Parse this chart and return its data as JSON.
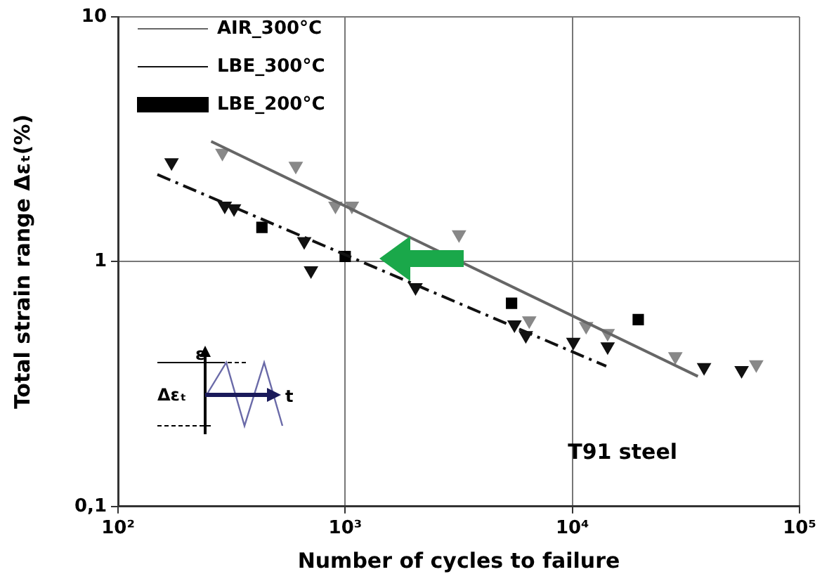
{
  "chart_data": {
    "type": "scatter",
    "xlabel": "Number of cycles to failure",
    "ylabel": "Total strain range Δεₜ(%)",
    "log": "xy",
    "xlim": [
      100,
      100000
    ],
    "ylim": [
      0.1,
      10
    ],
    "xticks": [
      {
        "value": 100,
        "label": "10²"
      },
      {
        "value": 1000,
        "label": "10³"
      },
      {
        "value": 10000,
        "label": "10⁴"
      },
      {
        "value": 100000,
        "label": "10⁵"
      }
    ],
    "yticks": [
      {
        "value": 0.1,
        "label": "0,1"
      },
      1,
      10
    ],
    "grid": true,
    "legend": "top left",
    "annotations": [
      "T91 steel",
      "ε",
      "Δεₜ",
      "t"
    ],
    "series": [
      {
        "type": "line",
        "name": "AIR_300°C",
        "color": "#666666",
        "line_style": "solid",
        "marker": "none",
        "x": [
          257,
          35700
        ],
        "values": [
          3.1,
          0.34
        ]
      },
      {
        "type": "scatter",
        "color": "#888888",
        "marker": "triangle",
        "x": [
          288,
          606,
          906,
          1070,
          3170,
          6460,
          11500,
          14300,
          28400,
          64500
        ],
        "values": [
          2.78,
          2.46,
          1.69,
          1.69,
          1.29,
          0.575,
          0.545,
          0.51,
          0.41,
          0.38
        ]
      },
      {
        "type": "line",
        "name": "LBE_300°C",
        "color": "#111111",
        "line_style": "dashed",
        "marker": "none",
        "x": [
          149,
          14100
        ],
        "values": [
          2.27,
          0.374
        ]
      },
      {
        "type": "scatter",
        "color": "#111111",
        "marker": "triangle",
        "x": [
          172,
          295,
          324,
          660,
          707,
          2040,
          5560,
          6240,
          10100,
          14300,
          38000,
          55600
        ],
        "values": [
          2.54,
          1.69,
          1.65,
          1.21,
          0.92,
          0.785,
          0.553,
          0.5,
          0.47,
          0.45,
          0.37,
          0.36
        ]
      },
      {
        "type": "scatter",
        "name": "LBE_200°C",
        "color": "#000000",
        "marker": "square",
        "x": [
          430,
          1000,
          5400,
          19500
        ],
        "values": [
          1.38,
          1.05,
          0.676,
          0.58
        ]
      }
    ]
  }
}
